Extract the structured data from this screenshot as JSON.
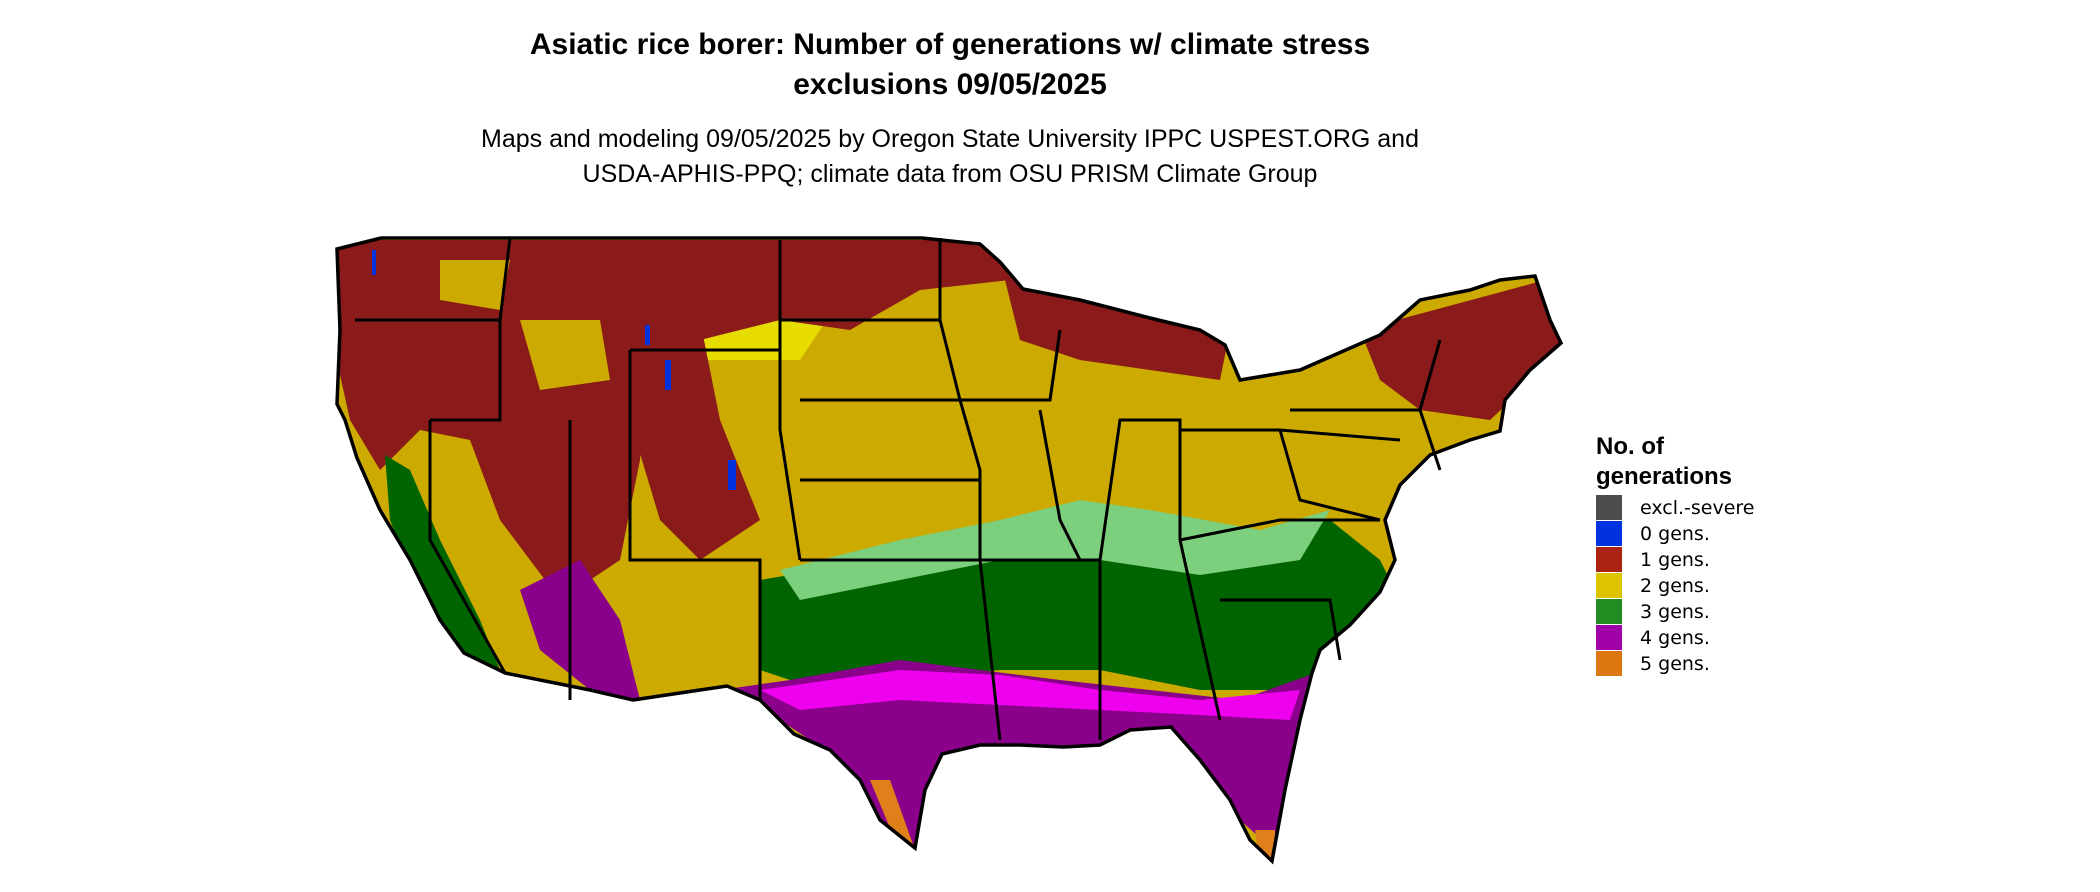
{
  "title": {
    "line1": "Asiatic rice borer: Number of generations w/ climate stress",
    "line2": "exclusions 09/05/2025"
  },
  "subtitle": {
    "line1": "Maps and modeling 09/05/2025 by Oregon State University IPPC USPEST.ORG and",
    "line2": "USDA-APHIS-PPQ; climate data from OSU PRISM Climate Group"
  },
  "legend": {
    "title_line1": "No. of",
    "title_line2": "generations",
    "items": [
      {
        "label": "excl.-severe",
        "color": "#4d4d4d"
      },
      {
        "label": "0 gens.",
        "color": "#0033dd"
      },
      {
        "label": "1 gens.",
        "color": "#aa2211"
      },
      {
        "label": "2 gens.",
        "color": "#ddc400"
      },
      {
        "label": "3 gens.",
        "color": "#228b22"
      },
      {
        "label": "4 gens.",
        "color": "#a000a8"
      },
      {
        "label": "5 gens.",
        "color": "#dd7711"
      }
    ]
  },
  "map_colors": {
    "one_gen": "#8b1a1a",
    "two_gen": "#ccaa00",
    "two_gen_light": "#e6dc00",
    "three_gen": "#006400",
    "three_gen_light": "#7ccf7c",
    "four_gen": "#8b008b",
    "four_gen_light": "#ee00ee",
    "five_gen": "#e0801a",
    "zero_gen": "#0033dd"
  }
}
